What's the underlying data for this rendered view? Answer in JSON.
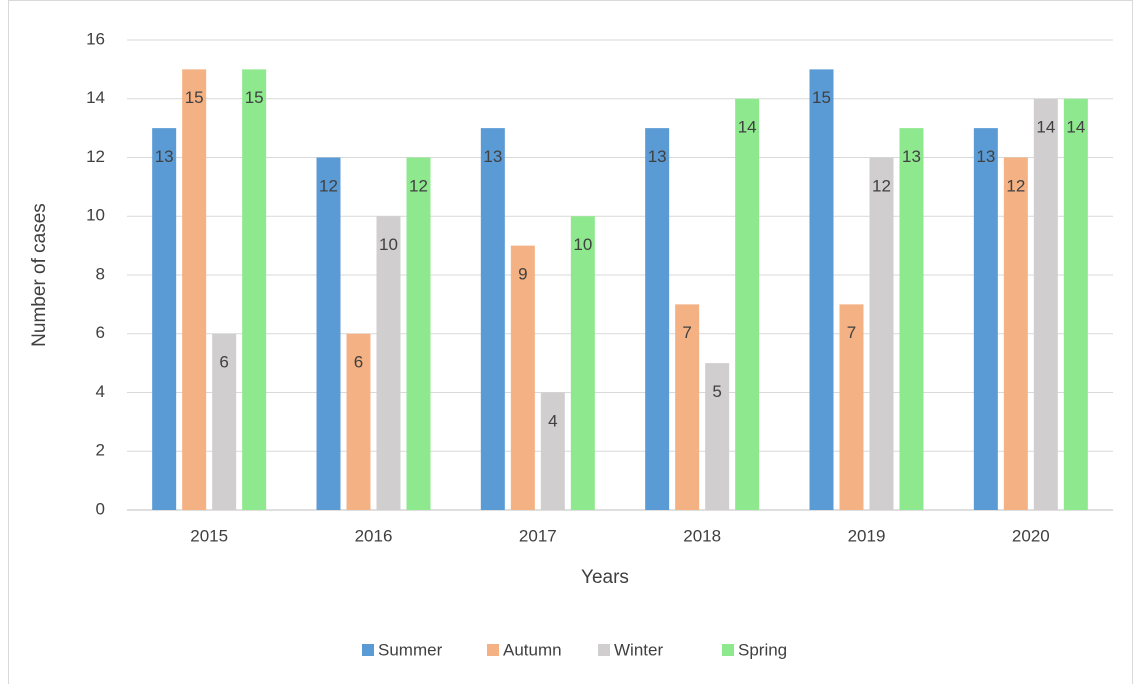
{
  "chart_data": {
    "type": "bar",
    "x_label": "Years",
    "y_label": "Number of cases",
    "categories": [
      "2015",
      "2016",
      "2017",
      "2018",
      "2019",
      "2020"
    ],
    "series": [
      {
        "name": "Summer",
        "color": "#5b9bd5",
        "values": [
          13,
          12,
          13,
          13,
          15,
          13
        ]
      },
      {
        "name": "Autumn",
        "color": "#f4b183",
        "values": [
          15,
          6,
          9,
          7,
          7,
          12
        ]
      },
      {
        "name": "Winter",
        "color": "#d0cece",
        "values": [
          6,
          10,
          4,
          5,
          12,
          14
        ]
      },
      {
        "name": "Spring",
        "color": "#8ee88e",
        "values": [
          15,
          12,
          10,
          14,
          13,
          14
        ]
      }
    ],
    "ylim": [
      0,
      16
    ],
    "yticks": [
      0,
      2,
      4,
      6,
      8,
      10,
      12,
      14,
      16
    ],
    "grid": true,
    "legend": "bottom"
  }
}
